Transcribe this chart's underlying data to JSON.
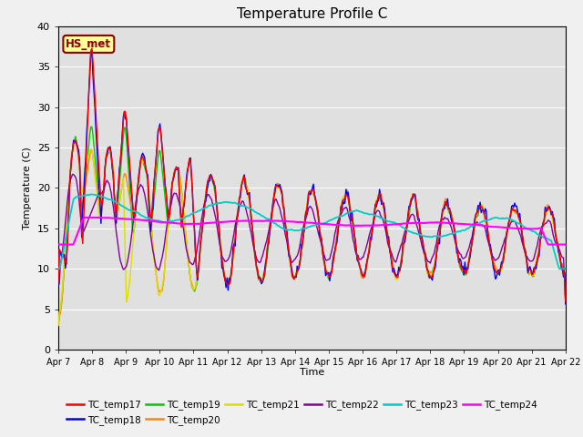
{
  "title": "Temperature Profile C",
  "xlabel": "Time",
  "ylabel": "Temperature (C)",
  "ylim": [
    0,
    40
  ],
  "xlim": [
    0,
    15
  ],
  "annotation_text": "HS_met",
  "annotation_color": "#8B0000",
  "annotation_bg": "#FFFF99",
  "plot_bg_color": "#E0E0E0",
  "fig_bg_color": "#F0F0F0",
  "series_colors": {
    "TC_temp17": "#FF0000",
    "TC_temp18": "#0000FF",
    "TC_temp19": "#00CC00",
    "TC_temp20": "#FF8800",
    "TC_temp21": "#DDDD00",
    "TC_temp22": "#880099",
    "TC_temp23": "#00CCCC",
    "TC_temp24": "#FF00FF"
  },
  "x_tick_labels": [
    "Apr 7",
    "Apr 8",
    "Apr 9",
    "Apr 10",
    "Apr 11",
    "Apr 12",
    "Apr 13",
    "Apr 14",
    "Apr 15",
    "Apr 16",
    "Apr 17",
    "Apr 18",
    "Apr 19",
    "Apr 20",
    "Apr 21",
    "Apr 22"
  ],
  "yticks": [
    0,
    5,
    10,
    15,
    20,
    25,
    30,
    35,
    40
  ],
  "n_points": 500,
  "legend_ncol_row1": 6,
  "legend_ncol_row2": 2
}
